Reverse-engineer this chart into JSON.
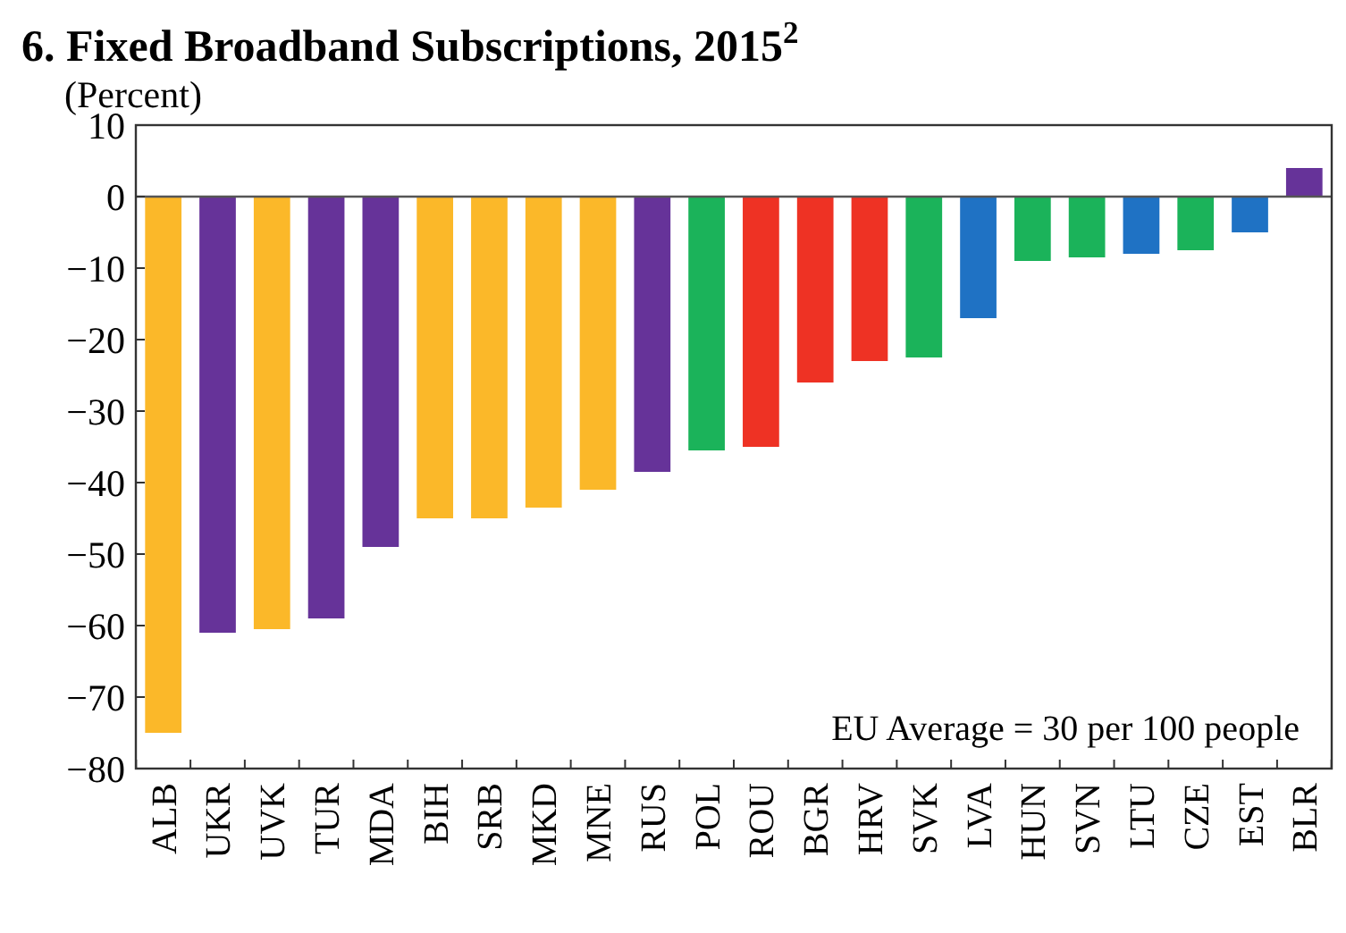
{
  "chart_data": {
    "type": "bar",
    "title": "6. Fixed Broadband Subscriptions, 2015$^{2}$",
    "subtitle": "(Percent)",
    "categories": [
      "ALB",
      "UKR",
      "UVK",
      "TUR",
      "MDA",
      "BIH",
      "SRB",
      "MKD",
      "MNE",
      "RUS",
      "POL",
      "ROU",
      "BGR",
      "HRV",
      "SVK",
      "LVA",
      "HUN",
      "SVN",
      "LTU",
      "CZE",
      "EST",
      "BLR"
    ],
    "values": [
      -75,
      -61,
      -60.5,
      -59,
      -49,
      -45,
      -45,
      -43.5,
      -41,
      -38.5,
      -35.5,
      -35,
      -26,
      -23,
      -22.5,
      -17,
      -9,
      -8.5,
      -8,
      -7.5,
      -5,
      4
    ],
    "colors": [
      "#fbb829",
      "#663399",
      "#fbb829",
      "#663399",
      "#663399",
      "#fbb829",
      "#fbb829",
      "#fbb829",
      "#fbb829",
      "#663399",
      "#1bb35a",
      "#ee3224",
      "#ee3224",
      "#ee3224",
      "#1bb35a",
      "#1f72c4",
      "#1bb35a",
      "#1bb35a",
      "#1f72c4",
      "#1bb35a",
      "#1f72c4",
      "#663399"
    ],
    "ylim": [
      -80,
      10
    ],
    "yticks": [
      -80,
      -70,
      -60,
      -50,
      -40,
      -30,
      -20,
      -10,
      0,
      10
    ],
    "annotations": [
      "EU Average = 30 per 100 people"
    ]
  }
}
